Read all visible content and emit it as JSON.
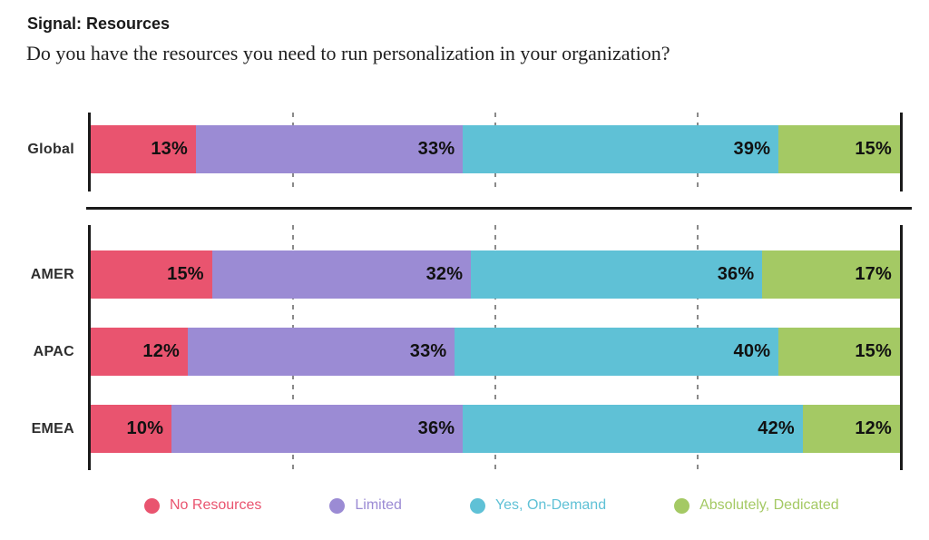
{
  "header": {
    "title": "Signal: Resources",
    "question": "Do you have the resources you need to run personalization in your organization?"
  },
  "chart_data": {
    "type": "bar",
    "orientation": "horizontal",
    "stacked": true,
    "unit": "%",
    "xlim": [
      0,
      100
    ],
    "gridlines": {
      "style": "dashed",
      "at_percent": [
        25,
        50,
        75
      ],
      "color": "#8a8a8a"
    },
    "axis_color": "#1a1a1a",
    "categories": [
      "Global",
      "AMER",
      "APAC",
      "EMEA"
    ],
    "row_groups": [
      [
        "Global"
      ],
      [
        "AMER",
        "APAC",
        "EMEA"
      ]
    ],
    "series": [
      {
        "name": "No Resources",
        "color": "#E9546F",
        "values": [
          13,
          15,
          12,
          10
        ]
      },
      {
        "name": "Limited",
        "color": "#9B8BD4",
        "values": [
          33,
          32,
          33,
          36
        ]
      },
      {
        "name": "Yes, On-Demand",
        "color": "#5FC1D6",
        "values": [
          39,
          36,
          40,
          42
        ]
      },
      {
        "name": "Absolutely, Dedicated",
        "color": "#A4C964",
        "values": [
          15,
          17,
          15,
          12
        ]
      }
    ],
    "data_labels": {
      "show": true,
      "format": "{value}%",
      "position": "inside-right"
    },
    "legend": {
      "position": "bottom",
      "entries": [
        "No Resources",
        "Limited",
        "Yes, On-Demand",
        "Absolutely, Dedicated"
      ]
    }
  }
}
